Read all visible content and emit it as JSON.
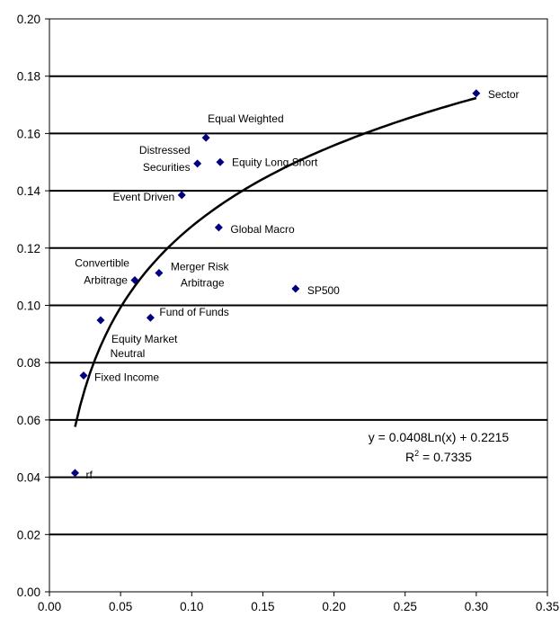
{
  "chart_data": {
    "type": "scatter",
    "title": "",
    "xlabel": "",
    "ylabel": "",
    "xlim": [
      0,
      0.35
    ],
    "ylim": [
      0,
      0.2
    ],
    "x_ticks": [
      "0.00",
      "0.05",
      "0.10",
      "0.15",
      "0.20",
      "0.25",
      "0.30",
      "0.35"
    ],
    "y_ticks": [
      "0.00",
      "0.02",
      "0.04",
      "0.06",
      "0.08",
      "0.10",
      "0.12",
      "0.14",
      "0.16",
      "0.18",
      "0.20"
    ],
    "grid": "horizontal",
    "legend": "none",
    "marker_color": "#000080",
    "points": [
      {
        "label": "rf",
        "x": 0.018,
        "y": 0.0415
      },
      {
        "label": "Fixed Income",
        "x": 0.024,
        "y": 0.0755
      },
      {
        "label": "Equity Market Neutral",
        "x": 0.036,
        "y": 0.0948
      },
      {
        "label": "Convertible Arbitrage",
        "x": 0.06,
        "y": 0.1088
      },
      {
        "label": "Fund of Funds",
        "x": 0.071,
        "y": 0.0957
      },
      {
        "label": "Merger Risk Arbitrage",
        "x": 0.077,
        "y": 0.1113
      },
      {
        "label": "Event Driven",
        "x": 0.093,
        "y": 0.1385
      },
      {
        "label": "Distressed Securities",
        "x": 0.104,
        "y": 0.1495
      },
      {
        "label": "Equal Weighted",
        "x": 0.11,
        "y": 0.1585
      },
      {
        "label": "Global Macro",
        "x": 0.119,
        "y": 0.1272
      },
      {
        "label": "Equity Long Short",
        "x": 0.12,
        "y": 0.15
      },
      {
        "label": "SP500",
        "x": 0.173,
        "y": 0.1058
      },
      {
        "label": "Sector",
        "x": 0.3,
        "y": 0.174
      }
    ],
    "trendline": {
      "type": "logarithmic",
      "a": 0.0408,
      "b": 0.2215,
      "x_range": [
        0.018,
        0.3
      ],
      "equation": "y = 0.0408Ln(x) + 0.2215",
      "r2_prefix": "R",
      "r2_sup": "2",
      "r2_value": " = 0.7335"
    }
  }
}
